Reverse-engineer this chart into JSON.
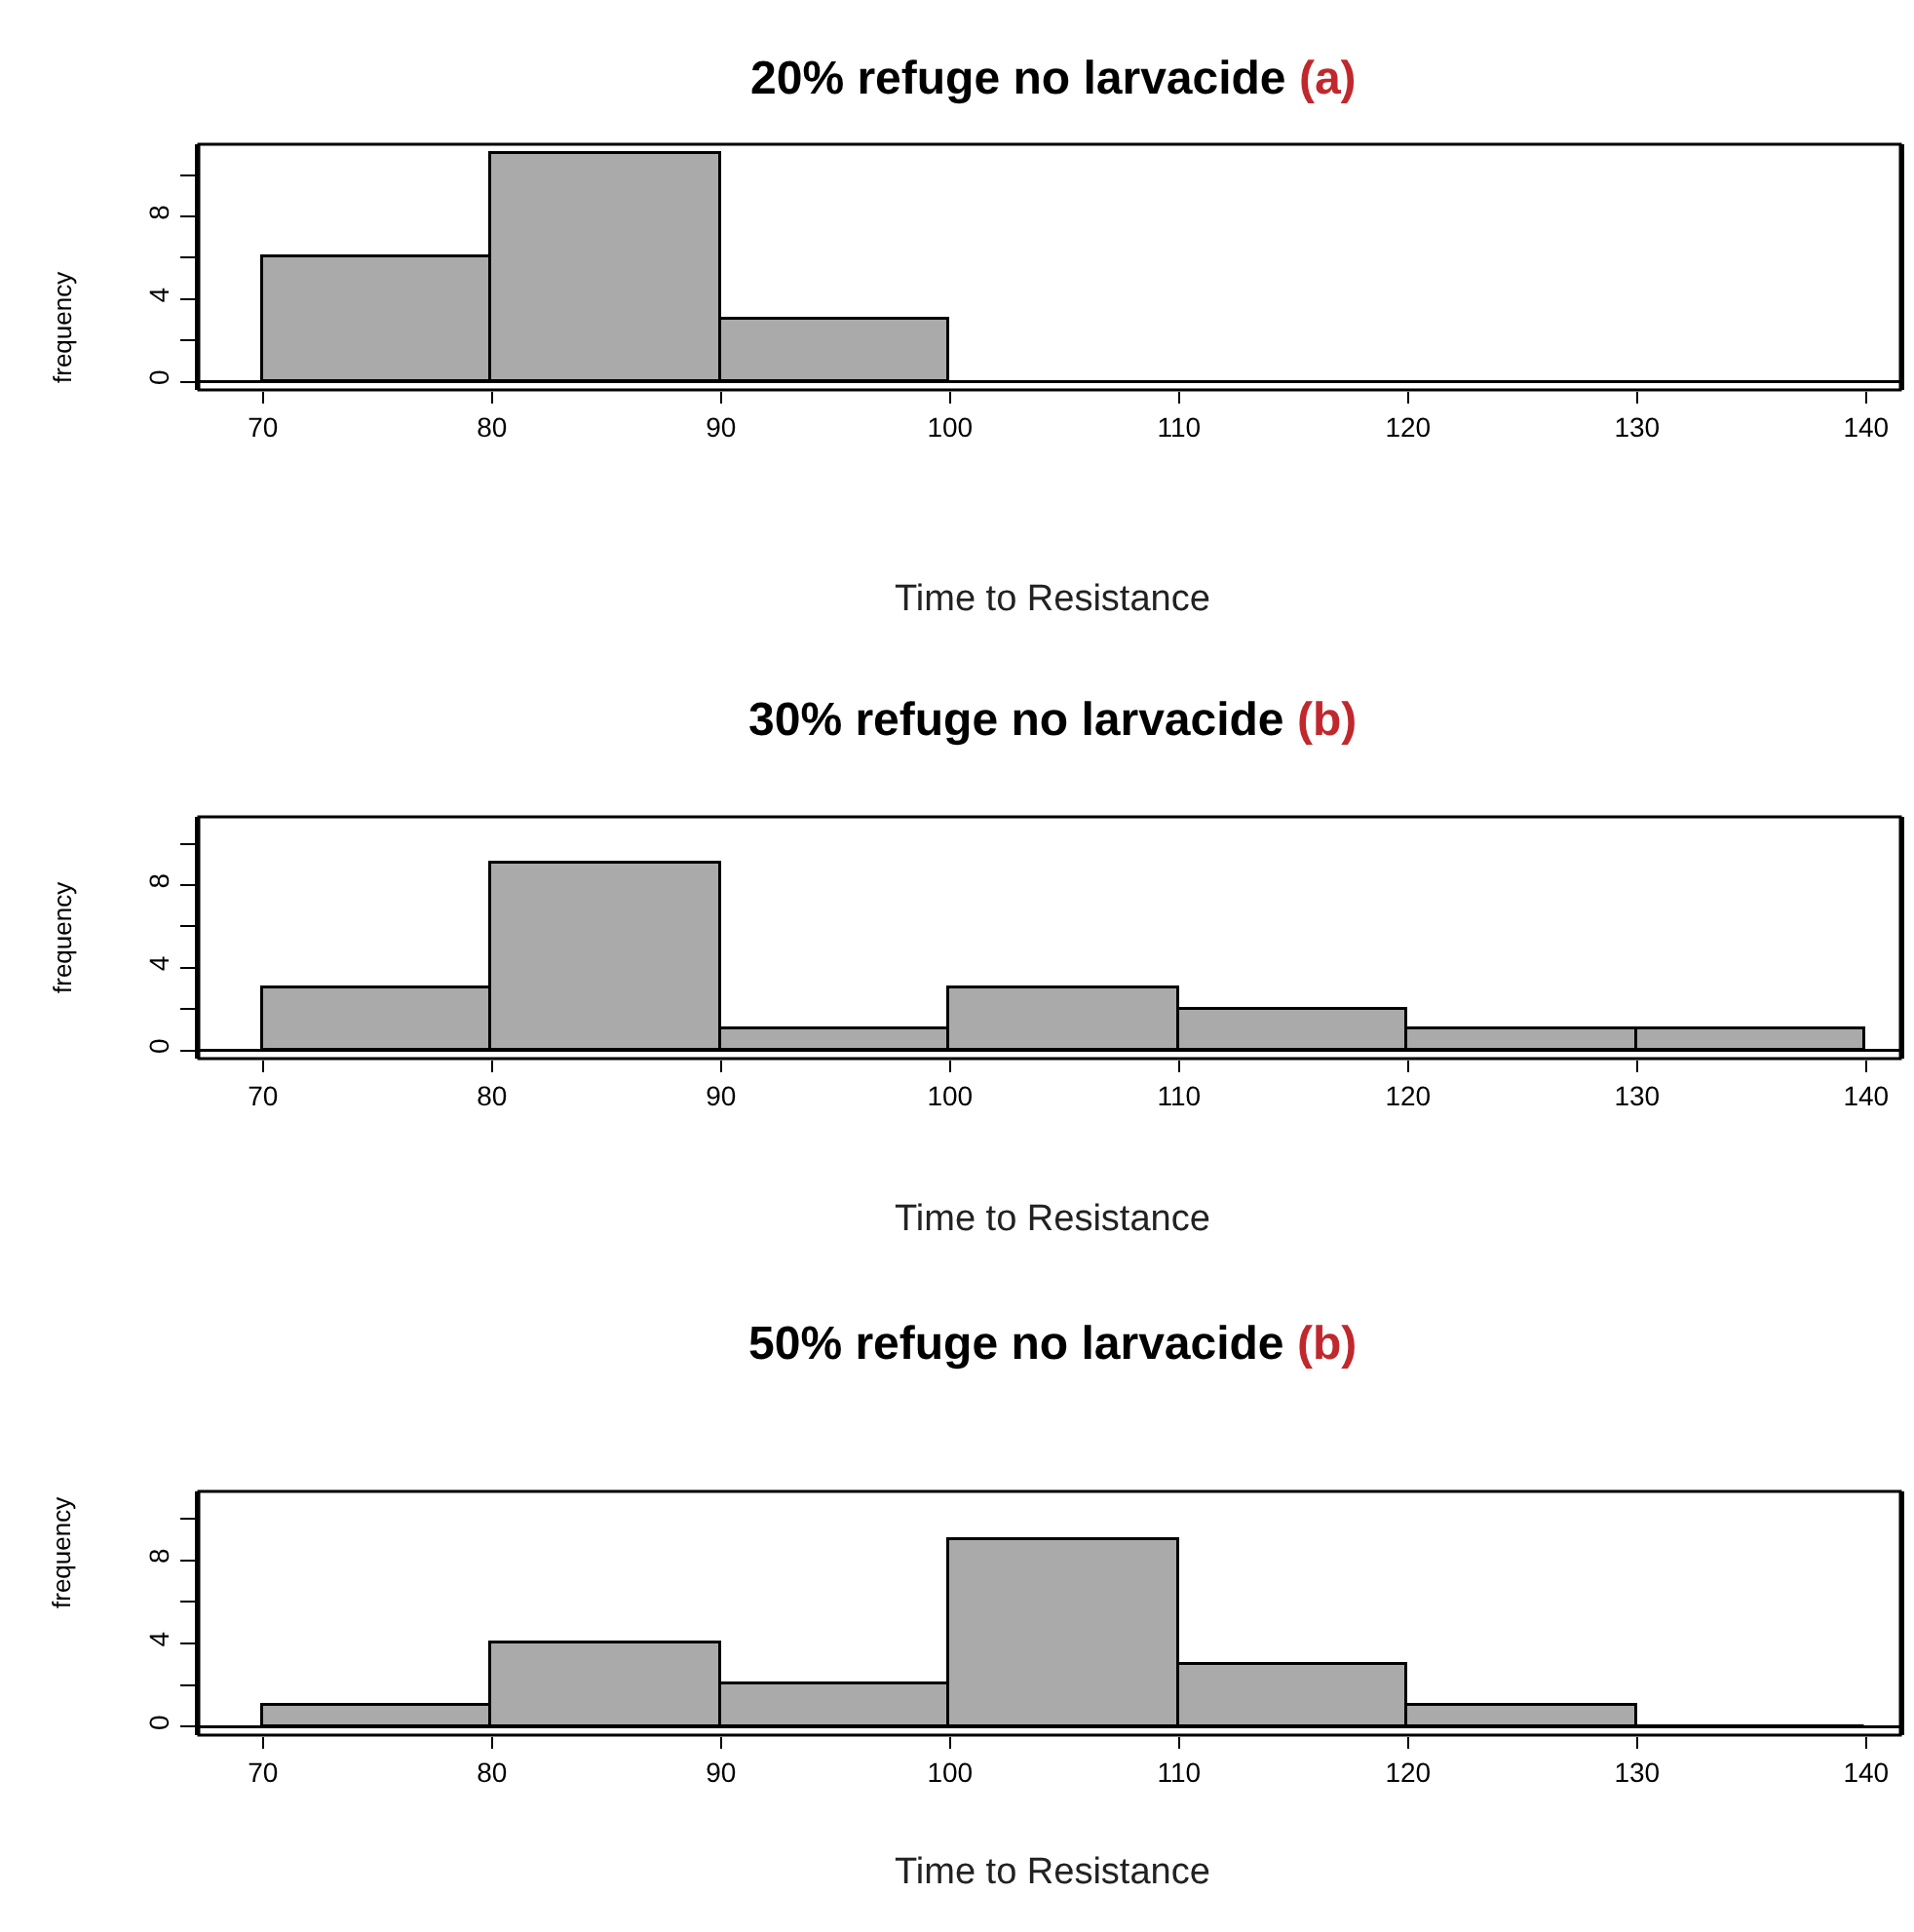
{
  "chart_data": [
    {
      "type": "histogram",
      "title": "20% refuge no larvacide",
      "annotations": [
        "(a)"
      ],
      "xlabel": "Time to Resistance",
      "ylabel": "frequency",
      "bins": [
        70,
        80,
        90,
        100
      ],
      "values": [
        6,
        11,
        3
      ],
      "color": "#aaaaaa",
      "xlim": [
        67.2,
        141.5
      ],
      "xticks": [
        70,
        80,
        90,
        100,
        110,
        120,
        130,
        140
      ],
      "ylim": [
        -0.4,
        11.5
      ],
      "yticks": [
        0,
        {
          "value": 2,
          "label": null
        },
        4,
        {
          "value": 6,
          "label": null
        },
        8,
        {
          "value": 10,
          "label": null
        }
      ]
    },
    {
      "type": "histogram",
      "title": "30% refuge no larvacide",
      "annotations": [
        "(b)"
      ],
      "xlabel": "Time to Resistance",
      "ylabel": "frequency",
      "bins": [
        70,
        80,
        90,
        100,
        110,
        120,
        130,
        140
      ],
      "values": [
        3,
        9,
        1,
        3,
        2,
        1,
        1
      ],
      "color": "#aaaaaa",
      "xlim": [
        67.2,
        141.5
      ],
      "xticks": [
        70,
        80,
        90,
        100,
        110,
        120,
        130,
        140
      ],
      "ylim": [
        -0.4,
        11.3
      ],
      "yticks": [
        0,
        {
          "value": 2,
          "label": null
        },
        4,
        {
          "value": 6,
          "label": null
        },
        8,
        {
          "value": 10,
          "label": null
        }
      ]
    },
    {
      "type": "histogram",
      "title": "50% refuge no larvacide",
      "annotations": [
        "(b)"
      ],
      "xlabel": "Time to Resistance",
      "ylabel": "frequency",
      "bins": [
        70,
        80,
        90,
        100,
        110,
        120,
        130,
        140
      ],
      "values": [
        1,
        4,
        2,
        9,
        3,
        1,
        0
      ],
      "color": "#aaaaaa",
      "xlim": [
        67.2,
        141.5
      ],
      "xticks": [
        70,
        80,
        90,
        100,
        110,
        120,
        130,
        140
      ],
      "ylim": [
        -0.4,
        11.3
      ],
      "yticks": [
        0,
        {
          "value": 2,
          "label": null
        },
        4,
        {
          "value": 6,
          "label": null
        },
        8,
        {
          "value": 10,
          "label": null
        }
      ]
    }
  ]
}
